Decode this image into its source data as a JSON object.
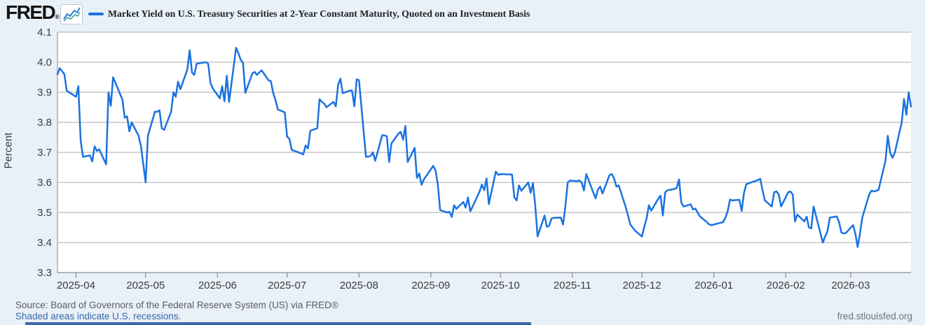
{
  "header": {
    "logo_text": "FRED",
    "logo_reg": "®",
    "series_label": "Market Yield on U.S. Treasury Securities at 2-Year Constant Maturity, Quoted on an Investment Basis"
  },
  "footer": {
    "source_line": "Source: Board of Governors of the Federal Reserve System (US) via FRED®",
    "recession_note": "Shaded areas indicate U.S. recessions.",
    "site_link": "fred.stlouisfed.org"
  },
  "colors": {
    "background": "#e8f0f8",
    "plot_background": "#ffffff",
    "line": "#1a72e0",
    "gridline": "#c6c6c6",
    "axis_line": "#a8a8a8",
    "tick_mark": "#8a8a8a",
    "axis_text": "#3d3d3d",
    "title_text": "#222222",
    "source_text": "#5d5d5d",
    "link_text": "#3a66a5",
    "divider": "#3a67a8",
    "logo_icon_line1": "#2f7ed8",
    "logo_icon_line2": "#45a49c"
  },
  "chart_data": {
    "type": "line",
    "title": "Market Yield on U.S. Treasury Securities at 2-Year Constant Maturity, Quoted on an Investment Basis",
    "xlabel": "",
    "ylabel": "Percent",
    "ylim": [
      3.3,
      4.1
    ],
    "y_ticks": [
      4.1,
      4.0,
      3.9,
      3.8,
      3.7,
      3.6,
      3.5,
      3.4,
      3.3
    ],
    "x_range": [
      "2025-03-24",
      "2026-03-27"
    ],
    "x_ticks": [
      {
        "label": "2025-04",
        "date": "2025-04-01"
      },
      {
        "label": "2025-05",
        "date": "2025-05-01"
      },
      {
        "label": "2025-06",
        "date": "2025-06-01"
      },
      {
        "label": "2025-07",
        "date": "2025-07-01"
      },
      {
        "label": "2025-08",
        "date": "2025-08-01"
      },
      {
        "label": "2025-09",
        "date": "2025-09-01"
      },
      {
        "label": "2025-10",
        "date": "2025-10-01"
      },
      {
        "label": "2025-11",
        "date": "2025-11-01"
      },
      {
        "label": "2025-12",
        "date": "2025-12-01"
      },
      {
        "label": "2026-01",
        "date": "2026-01-01"
      },
      {
        "label": "2026-02",
        "date": "2026-02-01"
      },
      {
        "label": "2026-03",
        "date": "2026-03-01"
      }
    ],
    "grid": "horizontal",
    "legend_position": "top",
    "series": [
      {
        "name": "Market Yield on U.S. Treasury Securities at 2-Year Constant Maturity, Quoted on an Investment Basis",
        "unit": "Percent",
        "points": [
          [
            "2025-03-24",
            3.96
          ],
          [
            "2025-03-25",
            3.98
          ],
          [
            "2025-03-26",
            3.97
          ],
          [
            "2025-03-27",
            3.96
          ],
          [
            "2025-03-28",
            3.905
          ],
          [
            "2025-03-31",
            3.89
          ],
          [
            "2025-04-01",
            3.885
          ],
          [
            "2025-04-02",
            3.92
          ],
          [
            "2025-04-03",
            3.74
          ],
          [
            "2025-04-04",
            3.685
          ],
          [
            "2025-04-07",
            3.69
          ],
          [
            "2025-04-08",
            3.67
          ],
          [
            "2025-04-09",
            3.72
          ],
          [
            "2025-04-10",
            3.705
          ],
          [
            "2025-04-11",
            3.71
          ],
          [
            "2025-04-14",
            3.66
          ],
          [
            "2025-04-15",
            3.9
          ],
          [
            "2025-04-16",
            3.855
          ],
          [
            "2025-04-17",
            3.95
          ],
          [
            "2025-04-21",
            3.875
          ],
          [
            "2025-04-22",
            3.815
          ],
          [
            "2025-04-23",
            3.82
          ],
          [
            "2025-04-24",
            3.77
          ],
          [
            "2025-04-25",
            3.8
          ],
          [
            "2025-04-28",
            3.755
          ],
          [
            "2025-04-29",
            3.72
          ],
          [
            "2025-04-30",
            3.66
          ],
          [
            "2025-05-01",
            3.6
          ],
          [
            "2025-05-02",
            3.755
          ],
          [
            "2025-05-05",
            3.835
          ],
          [
            "2025-05-06",
            3.835
          ],
          [
            "2025-05-07",
            3.84
          ],
          [
            "2025-05-08",
            3.78
          ],
          [
            "2025-05-09",
            3.775
          ],
          [
            "2025-05-12",
            3.835
          ],
          [
            "2025-05-13",
            3.9
          ],
          [
            "2025-05-14",
            3.885
          ],
          [
            "2025-05-15",
            3.935
          ],
          [
            "2025-05-16",
            3.91
          ],
          [
            "2025-05-19",
            3.975
          ],
          [
            "2025-05-20",
            4.04
          ],
          [
            "2025-05-21",
            3.965
          ],
          [
            "2025-05-22",
            3.958
          ],
          [
            "2025-05-23",
            3.995
          ],
          [
            "2025-05-27",
            4.0
          ],
          [
            "2025-05-28",
            3.995
          ],
          [
            "2025-05-29",
            3.93
          ],
          [
            "2025-05-30",
            3.912
          ],
          [
            "2025-06-02",
            3.88
          ],
          [
            "2025-06-03",
            3.92
          ],
          [
            "2025-06-04",
            3.87
          ],
          [
            "2025-06-05",
            3.955
          ],
          [
            "2025-06-06",
            3.868
          ],
          [
            "2025-06-09",
            4.048
          ],
          [
            "2025-06-10",
            4.03
          ],
          [
            "2025-06-11",
            4.008
          ],
          [
            "2025-06-12",
            3.998
          ],
          [
            "2025-06-13",
            3.898
          ],
          [
            "2025-06-16",
            3.962
          ],
          [
            "2025-06-17",
            3.968
          ],
          [
            "2025-06-18",
            3.958
          ],
          [
            "2025-06-20",
            3.973
          ],
          [
            "2025-06-23",
            3.94
          ],
          [
            "2025-06-24",
            3.937
          ],
          [
            "2025-06-25",
            3.898
          ],
          [
            "2025-06-26",
            3.874
          ],
          [
            "2025-06-27",
            3.843
          ],
          [
            "2025-06-30",
            3.833
          ],
          [
            "2025-07-01",
            3.752
          ],
          [
            "2025-07-02",
            3.745
          ],
          [
            "2025-07-03",
            3.708
          ],
          [
            "2025-07-07",
            3.697
          ],
          [
            "2025-07-08",
            3.693
          ],
          [
            "2025-07-09",
            3.723
          ],
          [
            "2025-07-10",
            3.713
          ],
          [
            "2025-07-11",
            3.772
          ],
          [
            "2025-07-14",
            3.78
          ],
          [
            "2025-07-15",
            3.877
          ],
          [
            "2025-07-16",
            3.868
          ],
          [
            "2025-07-17",
            3.862
          ],
          [
            "2025-07-18",
            3.85
          ],
          [
            "2025-07-21",
            3.868
          ],
          [
            "2025-07-22",
            3.853
          ],
          [
            "2025-07-23",
            3.925
          ],
          [
            "2025-07-24",
            3.945
          ],
          [
            "2025-07-25",
            3.897
          ],
          [
            "2025-07-28",
            3.905
          ],
          [
            "2025-07-29",
            3.906
          ],
          [
            "2025-07-30",
            3.853
          ],
          [
            "2025-07-31",
            3.943
          ],
          [
            "2025-08-01",
            3.94
          ],
          [
            "2025-08-04",
            3.685
          ],
          [
            "2025-08-05",
            3.686
          ],
          [
            "2025-08-06",
            3.688
          ],
          [
            "2025-08-07",
            3.7
          ],
          [
            "2025-08-08",
            3.672
          ],
          [
            "2025-08-11",
            3.757
          ],
          [
            "2025-08-12",
            3.756
          ],
          [
            "2025-08-13",
            3.754
          ],
          [
            "2025-08-14",
            3.668
          ],
          [
            "2025-08-15",
            3.73
          ],
          [
            "2025-08-18",
            3.762
          ],
          [
            "2025-08-19",
            3.768
          ],
          [
            "2025-08-20",
            3.742
          ],
          [
            "2025-08-21",
            3.788
          ],
          [
            "2025-08-22",
            3.668
          ],
          [
            "2025-08-25",
            3.715
          ],
          [
            "2025-08-26",
            3.615
          ],
          [
            "2025-08-27",
            3.63
          ],
          [
            "2025-08-28",
            3.592
          ],
          [
            "2025-08-29",
            3.61
          ],
          [
            "2025-09-02",
            3.655
          ],
          [
            "2025-09-03",
            3.64
          ],
          [
            "2025-09-04",
            3.593
          ],
          [
            "2025-09-05",
            3.508
          ],
          [
            "2025-09-08",
            3.5
          ],
          [
            "2025-09-09",
            3.502
          ],
          [
            "2025-09-10",
            3.485
          ],
          [
            "2025-09-11",
            3.524
          ],
          [
            "2025-09-12",
            3.512
          ],
          [
            "2025-09-15",
            3.535
          ],
          [
            "2025-09-16",
            3.516
          ],
          [
            "2025-09-17",
            3.55
          ],
          [
            "2025-09-18",
            3.504
          ],
          [
            "2025-09-19",
            3.52
          ],
          [
            "2025-09-22",
            3.57
          ],
          [
            "2025-09-23",
            3.593
          ],
          [
            "2025-09-24",
            3.574
          ],
          [
            "2025-09-25",
            3.613
          ],
          [
            "2025-09-26",
            3.528
          ],
          [
            "2025-09-29",
            3.636
          ],
          [
            "2025-09-30",
            3.625
          ],
          [
            "2025-10-01",
            3.627
          ],
          [
            "2025-10-02",
            3.628
          ],
          [
            "2025-10-03",
            3.627
          ],
          [
            "2025-10-06",
            3.626
          ],
          [
            "2025-10-07",
            3.55
          ],
          [
            "2025-10-08",
            3.54
          ],
          [
            "2025-10-09",
            3.59
          ],
          [
            "2025-10-10",
            3.572
          ],
          [
            "2025-10-13",
            3.6
          ],
          [
            "2025-10-14",
            3.565
          ],
          [
            "2025-10-15",
            3.598
          ],
          [
            "2025-10-16",
            3.524
          ],
          [
            "2025-10-17",
            3.42
          ],
          [
            "2025-10-20",
            3.49
          ],
          [
            "2025-10-21",
            3.452
          ],
          [
            "2025-10-22",
            3.456
          ],
          [
            "2025-10-23",
            3.48
          ],
          [
            "2025-10-24",
            3.482
          ],
          [
            "2025-10-27",
            3.483
          ],
          [
            "2025-10-28",
            3.46
          ],
          [
            "2025-10-29",
            3.52
          ],
          [
            "2025-10-30",
            3.6
          ],
          [
            "2025-10-31",
            3.606
          ],
          [
            "2025-11-03",
            3.604
          ],
          [
            "2025-11-04",
            3.607
          ],
          [
            "2025-11-05",
            3.6
          ],
          [
            "2025-11-06",
            3.573
          ],
          [
            "2025-11-07",
            3.628
          ],
          [
            "2025-11-10",
            3.567
          ],
          [
            "2025-11-11",
            3.547
          ],
          [
            "2025-11-12",
            3.576
          ],
          [
            "2025-11-13",
            3.586
          ],
          [
            "2025-11-14",
            3.563
          ],
          [
            "2025-11-17",
            3.624
          ],
          [
            "2025-11-18",
            3.628
          ],
          [
            "2025-11-19",
            3.613
          ],
          [
            "2025-11-20",
            3.586
          ],
          [
            "2025-11-21",
            3.59
          ],
          [
            "2025-11-24",
            3.518
          ],
          [
            "2025-11-25",
            3.49
          ],
          [
            "2025-11-26",
            3.46
          ],
          [
            "2025-11-28",
            3.44
          ],
          [
            "2025-12-01",
            3.42
          ],
          [
            "2025-12-02",
            3.452
          ],
          [
            "2025-12-03",
            3.48
          ],
          [
            "2025-12-04",
            3.524
          ],
          [
            "2025-12-05",
            3.506
          ],
          [
            "2025-12-08",
            3.545
          ],
          [
            "2025-12-09",
            3.556
          ],
          [
            "2025-12-10",
            3.49
          ],
          [
            "2025-12-11",
            3.567
          ],
          [
            "2025-12-12",
            3.574
          ],
          [
            "2025-12-15",
            3.578
          ],
          [
            "2025-12-16",
            3.582
          ],
          [
            "2025-12-17",
            3.61
          ],
          [
            "2025-12-18",
            3.532
          ],
          [
            "2025-12-19",
            3.52
          ],
          [
            "2025-12-22",
            3.527
          ],
          [
            "2025-12-23",
            3.51
          ],
          [
            "2025-12-24",
            3.513
          ],
          [
            "2025-12-26",
            3.487
          ],
          [
            "2025-12-29",
            3.468
          ],
          [
            "2025-12-30",
            3.46
          ],
          [
            "2025-12-31",
            3.458
          ],
          [
            "2026-01-02",
            3.462
          ],
          [
            "2026-01-05",
            3.468
          ],
          [
            "2026-01-06",
            3.483
          ],
          [
            "2026-01-07",
            3.505
          ],
          [
            "2026-01-08",
            3.543
          ],
          [
            "2026-01-09",
            3.54
          ],
          [
            "2026-01-12",
            3.542
          ],
          [
            "2026-01-13",
            3.505
          ],
          [
            "2026-01-14",
            3.565
          ],
          [
            "2026-01-15",
            3.594
          ],
          [
            "2026-01-16",
            3.597
          ],
          [
            "2026-01-20",
            3.608
          ],
          [
            "2026-01-21",
            3.612
          ],
          [
            "2026-01-22",
            3.573
          ],
          [
            "2026-01-23",
            3.54
          ],
          [
            "2026-01-26",
            3.52
          ],
          [
            "2026-01-27",
            3.567
          ],
          [
            "2026-01-28",
            3.57
          ],
          [
            "2026-01-29",
            3.56
          ],
          [
            "2026-01-30",
            3.52
          ],
          [
            "2026-02-02",
            3.567
          ],
          [
            "2026-02-03",
            3.57
          ],
          [
            "2026-02-04",
            3.56
          ],
          [
            "2026-02-05",
            3.47
          ],
          [
            "2026-02-06",
            3.493
          ],
          [
            "2026-02-09",
            3.47
          ],
          [
            "2026-02-10",
            3.486
          ],
          [
            "2026-02-11",
            3.45
          ],
          [
            "2026-02-12",
            3.447
          ],
          [
            "2026-02-13",
            3.52
          ],
          [
            "2026-02-17",
            3.4
          ],
          [
            "2026-02-18",
            3.42
          ],
          [
            "2026-02-19",
            3.437
          ],
          [
            "2026-02-20",
            3.483
          ],
          [
            "2026-02-23",
            3.487
          ],
          [
            "2026-02-24",
            3.468
          ],
          [
            "2026-02-25",
            3.433
          ],
          [
            "2026-02-26",
            3.43
          ],
          [
            "2026-02-27",
            3.432
          ],
          [
            "2026-03-02",
            3.458
          ],
          [
            "2026-03-03",
            3.43
          ],
          [
            "2026-03-04",
            3.385
          ],
          [
            "2026-03-05",
            3.43
          ],
          [
            "2026-03-06",
            3.483
          ],
          [
            "2026-03-09",
            3.56
          ],
          [
            "2026-03-10",
            3.573
          ],
          [
            "2026-03-11",
            3.57
          ],
          [
            "2026-03-12",
            3.572
          ],
          [
            "2026-03-13",
            3.575
          ],
          [
            "2026-03-16",
            3.672
          ],
          [
            "2026-03-17",
            3.755
          ],
          [
            "2026-03-18",
            3.7
          ],
          [
            "2026-03-19",
            3.682
          ],
          [
            "2026-03-20",
            3.698
          ],
          [
            "2026-03-23",
            3.8
          ],
          [
            "2026-03-24",
            3.878
          ],
          [
            "2026-03-25",
            3.825
          ],
          [
            "2026-03-26",
            3.9
          ],
          [
            "2026-03-27",
            3.852
          ]
        ]
      }
    ]
  }
}
